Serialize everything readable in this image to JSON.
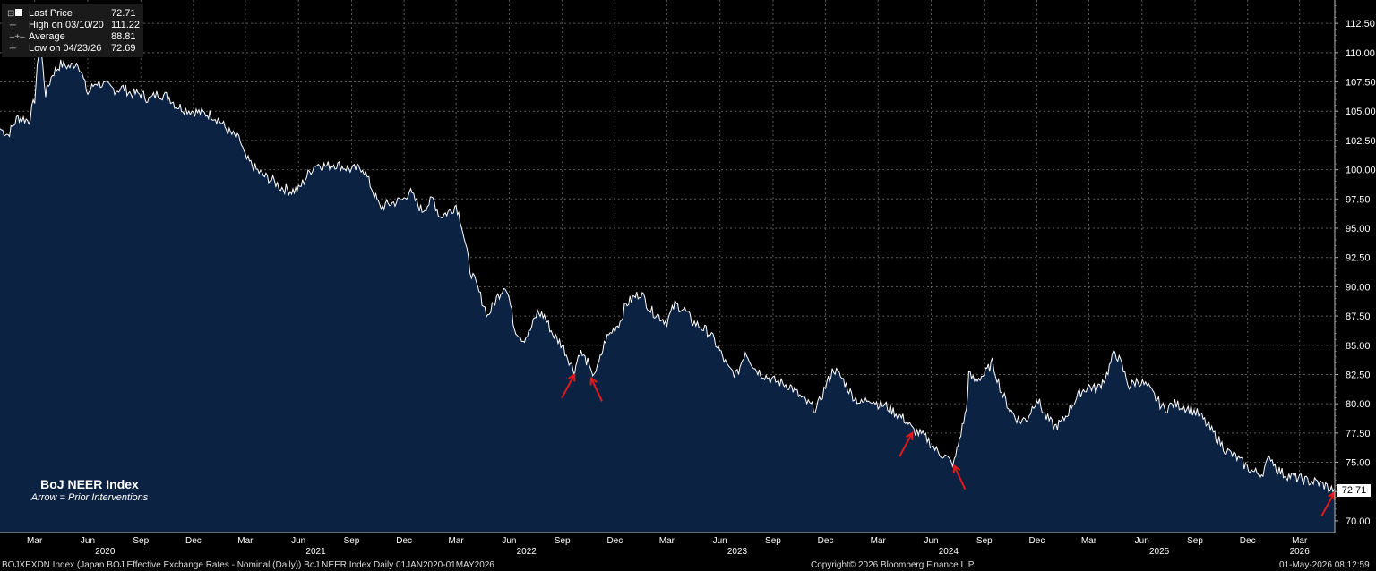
{
  "legend": {
    "last_label": "Last Price",
    "last_value": "72.71",
    "high_label": "High on 03/10/20",
    "high_value": "111.22",
    "avg_label": "Average",
    "avg_value": "88.81",
    "low_label": "Low on 04/23/26",
    "low_value": "72.69"
  },
  "annotation": {
    "title": "BoJ NEER Index",
    "subtitle": "Arrow = Prior Interventions"
  },
  "footer": {
    "left": "BOJXEXDN Index (Japan BOJ Effective Exchange Rates - Nominal (Daily)) BoJ NEER Index Daily 01JAN2020-01MAY2026",
    "center": "Copyright© 2026 Bloomberg Finance L.P.",
    "right": "01-May-2026 08:12:59"
  },
  "colors": {
    "background": "#000000",
    "area_fill": "#0c2243",
    "line": "#ffffff",
    "grid": "#5a5a5a",
    "arrow": "#e01a1a"
  },
  "chart_data": {
    "type": "area",
    "title": "BoJ NEER Index",
    "ylim": [
      69,
      114.5
    ],
    "xlim": [
      "2020-01-01",
      "2026-05-01"
    ],
    "y_ticks": [
      "70.00",
      "72.50",
      "75.00",
      "77.50",
      "80.00",
      "82.50",
      "85.00",
      "87.50",
      "90.00",
      "92.50",
      "95.00",
      "97.50",
      "100.00",
      "102.50",
      "105.00",
      "107.50",
      "110.00",
      "112.50"
    ],
    "x_month_ticks": [
      {
        "date": "2020-03-01",
        "label": "Mar"
      },
      {
        "date": "2020-06-01",
        "label": "Jun"
      },
      {
        "date": "2020-09-01",
        "label": "Sep"
      },
      {
        "date": "2020-12-01",
        "label": "Dec"
      },
      {
        "date": "2021-03-01",
        "label": "Mar"
      },
      {
        "date": "2021-06-01",
        "label": "Jun"
      },
      {
        "date": "2021-09-01",
        "label": "Sep"
      },
      {
        "date": "2021-12-01",
        "label": "Dec"
      },
      {
        "date": "2022-03-01",
        "label": "Mar"
      },
      {
        "date": "2022-06-01",
        "label": "Jun"
      },
      {
        "date": "2022-09-01",
        "label": "Sep"
      },
      {
        "date": "2022-12-01",
        "label": "Dec"
      },
      {
        "date": "2023-03-01",
        "label": "Mar"
      },
      {
        "date": "2023-06-01",
        "label": "Jun"
      },
      {
        "date": "2023-09-01",
        "label": "Sep"
      },
      {
        "date": "2023-12-01",
        "label": "Dec"
      },
      {
        "date": "2024-03-01",
        "label": "Mar"
      },
      {
        "date": "2024-06-01",
        "label": "Jun"
      },
      {
        "date": "2024-09-01",
        "label": "Sep"
      },
      {
        "date": "2024-12-01",
        "label": "Dec"
      },
      {
        "date": "2025-03-01",
        "label": "Mar"
      },
      {
        "date": "2025-06-01",
        "label": "Jun"
      },
      {
        "date": "2025-09-01",
        "label": "Sep"
      },
      {
        "date": "2025-12-01",
        "label": "Dec"
      },
      {
        "date": "2026-03-01",
        "label": "Mar"
      }
    ],
    "x_year_labels": [
      {
        "date": "2020-07-01",
        "label": "2020"
      },
      {
        "date": "2021-07-01",
        "label": "2021"
      },
      {
        "date": "2022-07-01",
        "label": "2022"
      },
      {
        "date": "2023-07-01",
        "label": "2023"
      },
      {
        "date": "2024-07-01",
        "label": "2024"
      },
      {
        "date": "2025-07-01",
        "label": "2025"
      },
      {
        "date": "2026-03-01",
        "label": "2026"
      }
    ],
    "last_value_label": "72.71",
    "series": [
      {
        "values": [
          [
            "2020-01-01",
            103.5
          ],
          [
            "2020-01-15",
            103.0
          ],
          [
            "2020-02-01",
            104.5
          ],
          [
            "2020-02-20",
            104.2
          ],
          [
            "2020-03-01",
            106.0
          ],
          [
            "2020-03-10",
            111.2
          ],
          [
            "2020-03-20",
            106.5
          ],
          [
            "2020-04-01",
            108.2
          ],
          [
            "2020-04-15",
            109.0
          ],
          [
            "2020-05-01",
            108.8
          ],
          [
            "2020-05-15",
            109.2
          ],
          [
            "2020-06-01",
            106.5
          ],
          [
            "2020-06-15",
            107.5
          ],
          [
            "2020-07-01",
            107.2
          ],
          [
            "2020-07-20",
            106.8
          ],
          [
            "2020-08-01",
            107.0
          ],
          [
            "2020-08-15",
            106.5
          ],
          [
            "2020-09-01",
            106.5
          ],
          [
            "2020-09-15",
            106.0
          ],
          [
            "2020-10-01",
            106.5
          ],
          [
            "2020-10-20",
            106.2
          ],
          [
            "2020-11-01",
            105.5
          ],
          [
            "2020-11-15",
            105.2
          ],
          [
            "2020-12-01",
            105.0
          ],
          [
            "2020-12-20",
            104.8
          ],
          [
            "2021-01-01",
            104.7
          ],
          [
            "2021-01-15",
            104.2
          ],
          [
            "2021-02-01",
            103.2
          ],
          [
            "2021-02-20",
            102.5
          ],
          [
            "2021-03-01",
            101.0
          ],
          [
            "2021-03-20",
            100.0
          ],
          [
            "2021-04-01",
            99.5
          ],
          [
            "2021-04-20",
            99.0
          ],
          [
            "2021-05-01",
            98.5
          ],
          [
            "2021-05-20",
            98.2
          ],
          [
            "2021-06-01",
            98.3
          ],
          [
            "2021-06-20",
            99.8
          ],
          [
            "2021-07-01",
            100.5
          ],
          [
            "2021-07-20",
            100.3
          ],
          [
            "2021-08-01",
            100.5
          ],
          [
            "2021-08-20",
            100.2
          ],
          [
            "2021-09-01",
            100.0
          ],
          [
            "2021-09-20",
            100.2
          ],
          [
            "2021-10-01",
            99.0
          ],
          [
            "2021-10-20",
            96.8
          ],
          [
            "2021-11-01",
            97.0
          ],
          [
            "2021-11-20",
            97.3
          ],
          [
            "2021-12-01",
            97.5
          ],
          [
            "2021-12-10",
            98.2
          ],
          [
            "2021-12-25",
            97.0
          ],
          [
            "2022-01-01",
            96.5
          ],
          [
            "2022-01-20",
            97.5
          ],
          [
            "2022-02-01",
            96.0
          ],
          [
            "2022-02-20",
            96.5
          ],
          [
            "2022-03-01",
            97.0
          ],
          [
            "2022-03-10",
            95.5
          ],
          [
            "2022-03-25",
            91.5
          ],
          [
            "2022-04-10",
            89.5
          ],
          [
            "2022-04-25",
            87.5
          ],
          [
            "2022-05-10",
            89.0
          ],
          [
            "2022-05-25",
            90.2
          ],
          [
            "2022-06-01",
            89.0
          ],
          [
            "2022-06-10",
            86.5
          ],
          [
            "2022-06-25",
            85.5
          ],
          [
            "2022-07-05",
            86.0
          ],
          [
            "2022-07-20",
            87.8
          ],
          [
            "2022-08-01",
            87.5
          ],
          [
            "2022-08-15",
            86.0
          ],
          [
            "2022-09-01",
            85.0
          ],
          [
            "2022-09-15",
            83.5
          ],
          [
            "2022-09-22",
            82.8
          ],
          [
            "2022-10-01",
            84.5
          ],
          [
            "2022-10-15",
            83.5
          ],
          [
            "2022-10-21",
            82.5
          ],
          [
            "2022-11-01",
            83.0
          ],
          [
            "2022-11-15",
            85.5
          ],
          [
            "2022-12-01",
            86.5
          ],
          [
            "2022-12-10",
            87.0
          ],
          [
            "2022-12-20",
            88.5
          ],
          [
            "2023-01-01",
            89.0
          ],
          [
            "2023-01-15",
            89.5
          ],
          [
            "2023-02-01",
            88.0
          ],
          [
            "2023-02-15",
            87.5
          ],
          [
            "2023-03-01",
            87.0
          ],
          [
            "2023-03-15",
            88.5
          ],
          [
            "2023-04-01",
            88.0
          ],
          [
            "2023-04-15",
            87.0
          ],
          [
            "2023-05-01",
            86.5
          ],
          [
            "2023-05-15",
            86.0
          ],
          [
            "2023-06-01",
            84.5
          ],
          [
            "2023-06-15",
            83.0
          ],
          [
            "2023-07-01",
            82.5
          ],
          [
            "2023-07-15",
            84.5
          ],
          [
            "2023-08-01",
            83.0
          ],
          [
            "2023-08-15",
            82.5
          ],
          [
            "2023-09-01",
            82.0
          ],
          [
            "2023-09-15",
            81.8
          ],
          [
            "2023-10-01",
            81.5
          ],
          [
            "2023-10-20",
            80.5
          ],
          [
            "2023-11-01",
            80.0
          ],
          [
            "2023-11-15",
            79.5
          ],
          [
            "2023-12-01",
            81.5
          ],
          [
            "2023-12-15",
            83.0
          ],
          [
            "2024-01-01",
            82.0
          ],
          [
            "2024-01-15",
            80.8
          ],
          [
            "2024-02-01",
            80.0
          ],
          [
            "2024-02-15",
            80.5
          ],
          [
            "2024-03-01",
            80.0
          ],
          [
            "2024-03-15",
            79.8
          ],
          [
            "2024-04-01",
            79.2
          ],
          [
            "2024-04-20",
            78.5
          ],
          [
            "2024-04-29",
            77.8
          ],
          [
            "2024-05-10",
            77.5
          ],
          [
            "2024-05-25",
            77.0
          ],
          [
            "2024-06-10",
            76.0
          ],
          [
            "2024-06-25",
            75.5
          ],
          [
            "2024-07-05",
            75.0
          ],
          [
            "2024-07-11",
            75.0
          ],
          [
            "2024-07-20",
            77.0
          ],
          [
            "2024-08-01",
            79.5
          ],
          [
            "2024-08-05",
            82.5
          ],
          [
            "2024-08-15",
            82.0
          ],
          [
            "2024-09-01",
            82.5
          ],
          [
            "2024-09-15",
            83.5
          ],
          [
            "2024-10-01",
            81.0
          ],
          [
            "2024-10-15",
            79.5
          ],
          [
            "2024-11-01",
            78.5
          ],
          [
            "2024-11-15",
            78.8
          ],
          [
            "2024-12-01",
            80.5
          ],
          [
            "2024-12-15",
            79.0
          ],
          [
            "2025-01-01",
            78.0
          ],
          [
            "2025-01-15",
            78.5
          ],
          [
            "2025-02-01",
            80.0
          ],
          [
            "2025-02-15",
            81.0
          ],
          [
            "2025-03-01",
            81.5
          ],
          [
            "2025-03-15",
            81.2
          ],
          [
            "2025-04-01",
            82.5
          ],
          [
            "2025-04-15",
            84.5
          ],
          [
            "2025-04-25",
            83.5
          ],
          [
            "2025-05-10",
            81.5
          ],
          [
            "2025-05-25",
            82.0
          ],
          [
            "2025-06-10",
            81.5
          ],
          [
            "2025-06-25",
            80.5
          ],
          [
            "2025-07-10",
            79.5
          ],
          [
            "2025-07-25",
            80.0
          ],
          [
            "2025-08-10",
            79.8
          ],
          [
            "2025-08-25",
            79.5
          ],
          [
            "2025-09-10",
            79.0
          ],
          [
            "2025-09-25",
            78.0
          ],
          [
            "2025-10-10",
            77.0
          ],
          [
            "2025-10-25",
            76.0
          ],
          [
            "2025-11-10",
            75.5
          ],
          [
            "2025-11-25",
            74.8
          ],
          [
            "2025-12-10",
            74.2
          ],
          [
            "2025-12-25",
            74.0
          ],
          [
            "2026-01-10",
            75.5
          ],
          [
            "2026-01-20",
            74.5
          ],
          [
            "2026-02-01",
            74.0
          ],
          [
            "2026-02-15",
            73.8
          ],
          [
            "2026-03-01",
            73.6
          ],
          [
            "2026-03-15",
            73.4
          ],
          [
            "2026-04-01",
            73.3
          ],
          [
            "2026-04-15",
            73.0
          ],
          [
            "2026-04-23",
            72.69
          ],
          [
            "2026-04-30",
            72.71
          ]
        ]
      }
    ],
    "intervention_arrows": [
      "2022-09-22",
      "2022-10-21",
      "2024-04-29",
      "2024-07-11",
      "2026-04-30"
    ]
  }
}
